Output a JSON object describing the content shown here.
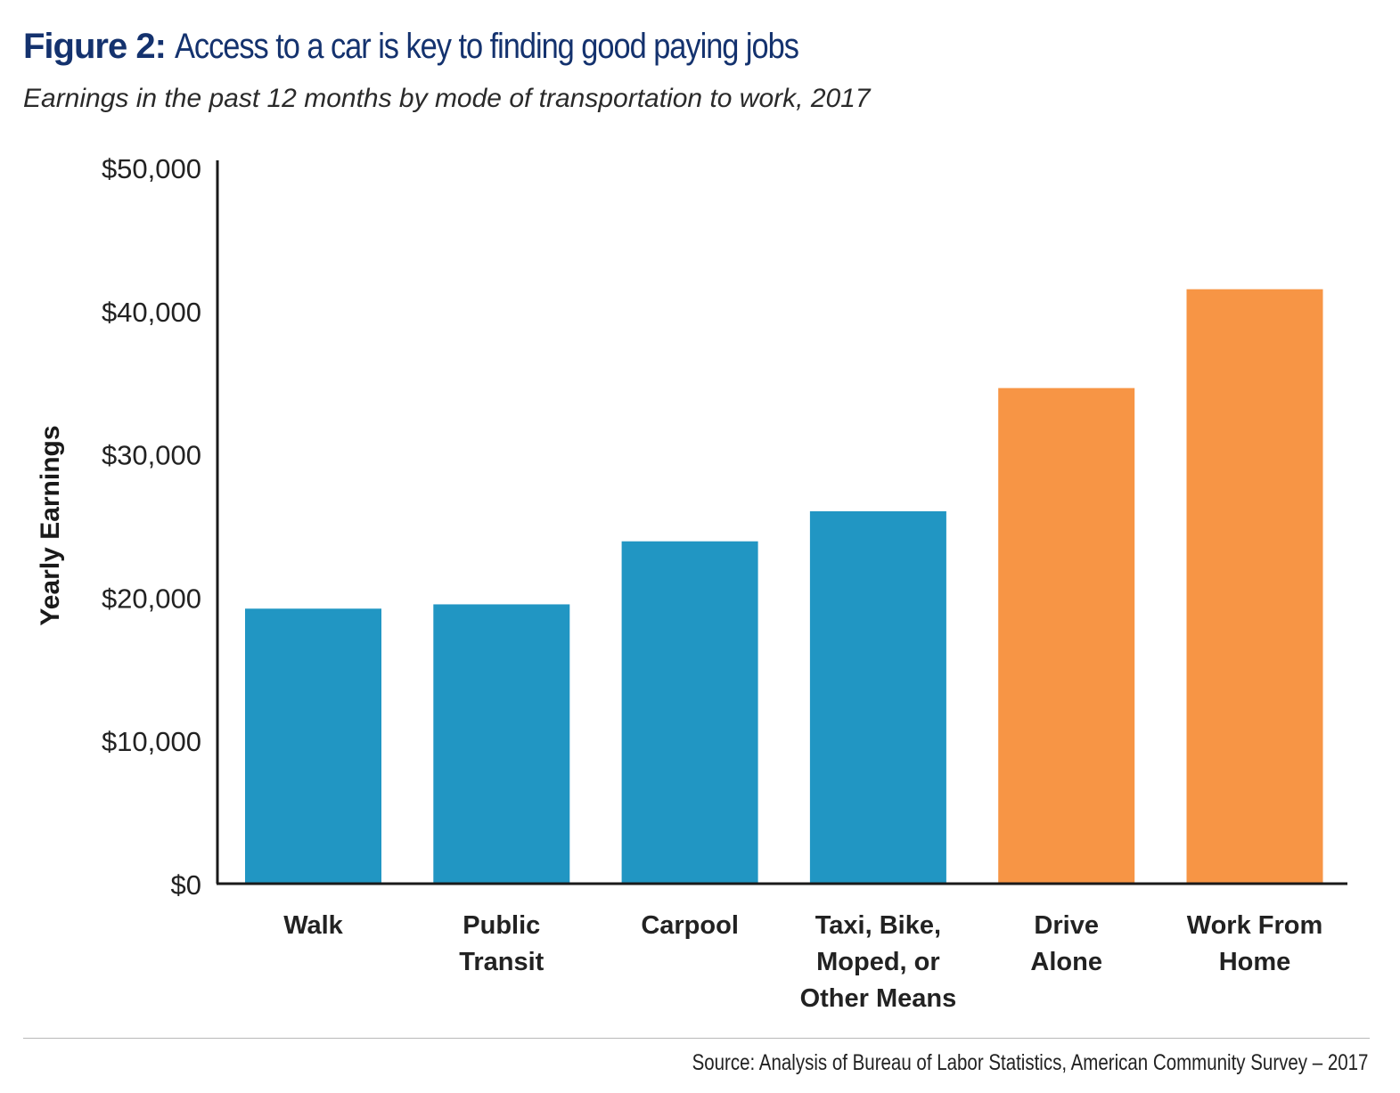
{
  "figure_label": "Figure 2:",
  "title": "Access to a car is key to finding good paying jobs",
  "subtitle": "Earnings in the past 12 months by mode of transportation to work, 2017",
  "source": "Source: Analysis of Bureau of Labor Statistics, American Community Survey – 2017",
  "colors": {
    "title": "#14326e",
    "blue_bar": "#2196c3",
    "orange_bar": "#f79545",
    "axis": "#1a1a1a"
  },
  "chart_data": {
    "type": "bar",
    "title": "Access to a car is key to finding good paying jobs",
    "subtitle": "Earnings in the past 12 months by mode of transportation to work, 2017",
    "xlabel": "",
    "ylabel": "Yearly Earnings",
    "ylim": [
      0,
      50000
    ],
    "yticks": [
      0,
      10000,
      20000,
      30000,
      40000,
      50000
    ],
    "ytick_labels": [
      "$0",
      "$10,000",
      "$20,000",
      "$30,000",
      "$40,000",
      "$50,000"
    ],
    "grid": false,
    "categories": [
      [
        "Walk"
      ],
      [
        "Public",
        "Transit"
      ],
      [
        "Carpool"
      ],
      [
        "Taxi, Bike,",
        "Moped, or",
        "Other Means"
      ],
      [
        "Drive",
        "Alone"
      ],
      [
        "Work From",
        "Home"
      ]
    ],
    "values": [
      19200,
      19500,
      23900,
      26000,
      34600,
      41500
    ],
    "bar_colors": [
      "#2196c3",
      "#2196c3",
      "#2196c3",
      "#2196c3",
      "#f79545",
      "#f79545"
    ]
  }
}
